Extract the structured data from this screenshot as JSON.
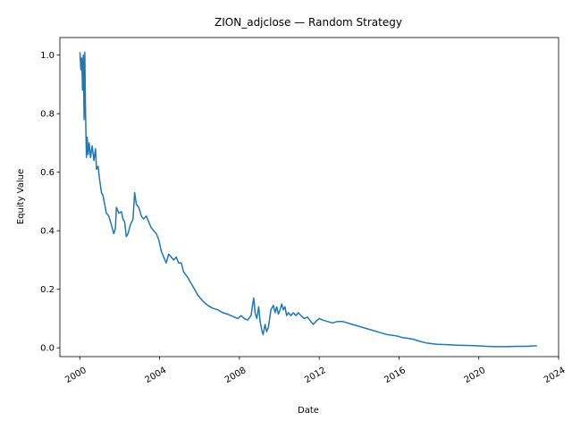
{
  "chart_data": {
    "type": "line",
    "title": "ZION_adjclose — Random Strategy",
    "xlabel": "Date",
    "ylabel": "Equity Value",
    "x_ticks": [
      "2000",
      "2004",
      "2008",
      "2012",
      "2016",
      "2020",
      "2024"
    ],
    "y_ticks": [
      "0.0",
      "0.2",
      "0.4",
      "0.6",
      "0.8",
      "1.0"
    ],
    "xlim": [
      "1999-01-01",
      "2024-01-01"
    ],
    "ylim": [
      -0.03,
      1.06
    ],
    "grid": false,
    "legend": "none",
    "series": [
      {
        "color": "#1f77b4",
        "points": [
          [
            "2000-01-03",
            1.01
          ],
          [
            "2000-01-20",
            0.95
          ],
          [
            "2000-02-05",
            0.99
          ],
          [
            "2000-02-20",
            0.88
          ],
          [
            "2000-03-05",
            1.0
          ],
          [
            "2000-03-20",
            0.78
          ],
          [
            "2000-04-01",
            1.01
          ],
          [
            "2000-04-15",
            0.8
          ],
          [
            "2000-05-01",
            0.65
          ],
          [
            "2000-05-15",
            0.72
          ],
          [
            "2000-06-01",
            0.66
          ],
          [
            "2000-06-20",
            0.7
          ],
          [
            "2000-07-15",
            0.65
          ],
          [
            "2000-08-15",
            0.69
          ],
          [
            "2000-09-15",
            0.64
          ],
          [
            "2000-10-15",
            0.68
          ],
          [
            "2000-11-01",
            0.61
          ],
          [
            "2000-12-01",
            0.62
          ],
          [
            "2001-01-01",
            0.57
          ],
          [
            "2001-02-01",
            0.53
          ],
          [
            "2001-03-01",
            0.52
          ],
          [
            "2001-04-01",
            0.49
          ],
          [
            "2001-05-01",
            0.46
          ],
          [
            "2001-06-15",
            0.45
          ],
          [
            "2001-08-01",
            0.42
          ],
          [
            "2001-09-15",
            0.39
          ],
          [
            "2001-10-15",
            0.41
          ],
          [
            "2001-11-01",
            0.48
          ],
          [
            "2001-12-15",
            0.46
          ],
          [
            "2002-02-01",
            0.465
          ],
          [
            "2002-03-01",
            0.44
          ],
          [
            "2002-04-01",
            0.43
          ],
          [
            "2002-05-01",
            0.38
          ],
          [
            "2002-06-01",
            0.39
          ],
          [
            "2002-07-15",
            0.42
          ],
          [
            "2002-09-01",
            0.44
          ],
          [
            "2002-10-01",
            0.53
          ],
          [
            "2002-11-01",
            0.49
          ],
          [
            "2002-12-15",
            0.48
          ],
          [
            "2003-02-01",
            0.45
          ],
          [
            "2003-03-15",
            0.44
          ],
          [
            "2003-05-01",
            0.45
          ],
          [
            "2003-06-15",
            0.43
          ],
          [
            "2003-08-01",
            0.41
          ],
          [
            "2003-09-15",
            0.4
          ],
          [
            "2003-11-01",
            0.39
          ],
          [
            "2003-12-15",
            0.37
          ],
          [
            "2004-02-01",
            0.33
          ],
          [
            "2004-03-15",
            0.31
          ],
          [
            "2004-05-01",
            0.29
          ],
          [
            "2004-06-15",
            0.32
          ],
          [
            "2004-08-01",
            0.31
          ],
          [
            "2004-09-15",
            0.3
          ],
          [
            "2004-11-01",
            0.31
          ],
          [
            "2004-12-15",
            0.29
          ],
          [
            "2005-02-01",
            0.29
          ],
          [
            "2005-03-15",
            0.26
          ],
          [
            "2005-06-01",
            0.24
          ],
          [
            "2005-09-01",
            0.21
          ],
          [
            "2005-12-01",
            0.18
          ],
          [
            "2006-03-01",
            0.16
          ],
          [
            "2006-06-01",
            0.145
          ],
          [
            "2006-09-01",
            0.135
          ],
          [
            "2006-12-01",
            0.13
          ],
          [
            "2007-03-01",
            0.12
          ],
          [
            "2007-06-01",
            0.115
          ],
          [
            "2007-08-01",
            0.11
          ],
          [
            "2007-10-01",
            0.105
          ],
          [
            "2007-12-01",
            0.1
          ],
          [
            "2008-02-01",
            0.11
          ],
          [
            "2008-04-01",
            0.1
          ],
          [
            "2008-06-01",
            0.095
          ],
          [
            "2008-08-01",
            0.11
          ],
          [
            "2008-09-01",
            0.15
          ],
          [
            "2008-09-20",
            0.17
          ],
          [
            "2008-10-15",
            0.12
          ],
          [
            "2008-11-15",
            0.1
          ],
          [
            "2008-12-20",
            0.14
          ],
          [
            "2009-01-15",
            0.09
          ],
          [
            "2009-02-15",
            0.06
          ],
          [
            "2009-03-10",
            0.045
          ],
          [
            "2009-04-15",
            0.08
          ],
          [
            "2009-05-15",
            0.055
          ],
          [
            "2009-06-15",
            0.07
          ],
          [
            "2009-08-01",
            0.13
          ],
          [
            "2009-09-15",
            0.145
          ],
          [
            "2009-10-15",
            0.12
          ],
          [
            "2009-11-15",
            0.14
          ],
          [
            "2009-12-15",
            0.115
          ],
          [
            "2010-01-15",
            0.13
          ],
          [
            "2010-02-15",
            0.15
          ],
          [
            "2010-03-15",
            0.13
          ],
          [
            "2010-04-15",
            0.14
          ],
          [
            "2010-05-15",
            0.11
          ],
          [
            "2010-06-15",
            0.12
          ],
          [
            "2010-08-01",
            0.11
          ],
          [
            "2010-09-15",
            0.12
          ],
          [
            "2010-11-01",
            0.11
          ],
          [
            "2010-12-15",
            0.12
          ],
          [
            "2011-02-01",
            0.11
          ],
          [
            "2011-04-01",
            0.1
          ],
          [
            "2011-06-01",
            0.105
          ],
          [
            "2011-08-01",
            0.09
          ],
          [
            "2011-09-15",
            0.08
          ],
          [
            "2011-11-01",
            0.09
          ],
          [
            "2012-01-01",
            0.1
          ],
          [
            "2012-03-01",
            0.095
          ],
          [
            "2012-06-01",
            0.09
          ],
          [
            "2012-09-01",
            0.085
          ],
          [
            "2012-12-01",
            0.09
          ],
          [
            "2013-03-01",
            0.09
          ],
          [
            "2013-06-01",
            0.085
          ],
          [
            "2013-09-01",
            0.08
          ],
          [
            "2013-12-01",
            0.075
          ],
          [
            "2014-03-01",
            0.07
          ],
          [
            "2014-06-01",
            0.065
          ],
          [
            "2014-09-01",
            0.06
          ],
          [
            "2014-12-01",
            0.055
          ],
          [
            "2015-03-01",
            0.05
          ],
          [
            "2015-06-01",
            0.045
          ],
          [
            "2015-09-01",
            0.043
          ],
          [
            "2015-12-01",
            0.04
          ],
          [
            "2016-03-01",
            0.035
          ],
          [
            "2016-06-01",
            0.033
          ],
          [
            "2016-09-01",
            0.03
          ],
          [
            "2016-12-01",
            0.025
          ],
          [
            "2017-03-01",
            0.02
          ],
          [
            "2017-06-01",
            0.016
          ],
          [
            "2017-09-01",
            0.014
          ],
          [
            "2017-12-01",
            0.012
          ],
          [
            "2018-06-01",
            0.011
          ],
          [
            "2018-12-01",
            0.009
          ],
          [
            "2019-06-01",
            0.008
          ],
          [
            "2019-12-01",
            0.007
          ],
          [
            "2020-06-01",
            0.005
          ],
          [
            "2020-12-01",
            0.004
          ],
          [
            "2021-06-01",
            0.004
          ],
          [
            "2021-12-01",
            0.005
          ],
          [
            "2022-06-01",
            0.005
          ],
          [
            "2022-12-01",
            0.007
          ]
        ]
      }
    ]
  }
}
